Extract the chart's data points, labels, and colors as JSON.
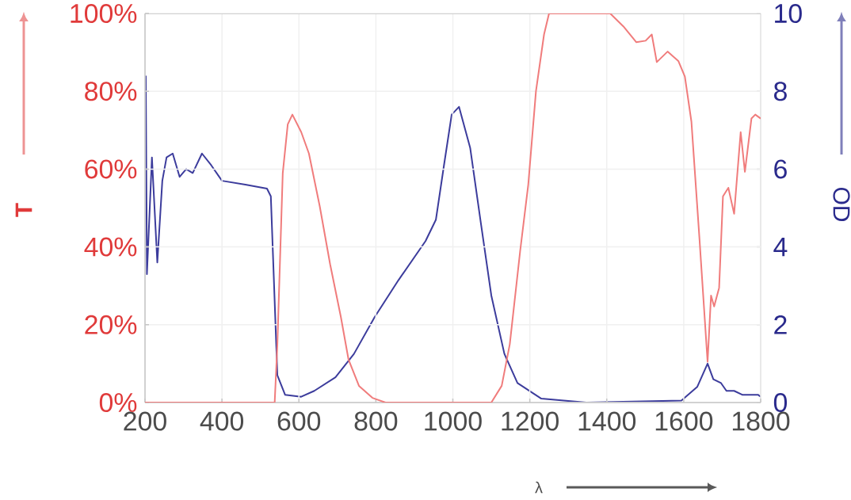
{
  "chart_data": {
    "type": "line",
    "xlabel": "λ",
    "ylabel": "T",
    "y2label": "OD",
    "xlim": [
      200,
      1800
    ],
    "xticks": [
      200,
      400,
      600,
      800,
      1000,
      1200,
      1400,
      1600,
      1800
    ],
    "ylim": [
      0,
      100
    ],
    "yticks": [
      {
        "value": 0,
        "label": "0%"
      },
      {
        "value": 20,
        "label": "20%"
      },
      {
        "value": 40,
        "label": "40%"
      },
      {
        "value": 60,
        "label": "60%"
      },
      {
        "value": 80,
        "label": "80%"
      },
      {
        "value": 100,
        "label": "100%"
      }
    ],
    "y2lim": [
      0,
      10
    ],
    "y2ticks": [
      0,
      2,
      4,
      6,
      8,
      10
    ],
    "grid": true,
    "series": [
      {
        "color": "#3c3c9c",
        "axis": "y2",
        "x": [
          202,
          205,
          218,
          232,
          245,
          256,
          272,
          290,
          307,
          324,
          348,
          372,
          400,
          461,
          517,
          527,
          544,
          564,
          606,
          640,
          695,
          743,
          797,
          859,
          929,
          956,
          977,
          997,
          1016,
          1045,
          1073,
          1100,
          1134,
          1168,
          1230,
          1347,
          1594,
          1635,
          1662,
          1677,
          1697,
          1711,
          1731,
          1752,
          1793,
          1800
        ],
        "values": [
          8.4,
          3.3,
          6.3,
          3.6,
          5.7,
          6.3,
          6.4,
          5.8,
          6.0,
          5.9,
          6.4,
          6.1,
          5.7,
          5.6,
          5.5,
          5.3,
          0.7,
          0.2,
          0.15,
          0.3,
          0.65,
          1.25,
          2.2,
          3.15,
          4.15,
          4.7,
          6.1,
          7.4,
          7.6,
          6.55,
          4.6,
          2.75,
          1.25,
          0.5,
          0.1,
          0.0,
          0.05,
          0.4,
          1.0,
          0.6,
          0.5,
          0.3,
          0.3,
          0.2,
          0.2,
          0.15
        ]
      },
      {
        "color": "#f07c7c",
        "axis": "y",
        "x": [
          200,
          537,
          544,
          558,
          571,
          583,
          606,
          626,
          654,
          681,
          709,
          729,
          756,
          791,
          825,
          1100,
          1127,
          1148,
          1175,
          1196,
          1216,
          1237,
          1250,
          1409,
          1443,
          1477,
          1501,
          1517,
          1530,
          1558,
          1586,
          1603,
          1620,
          1641,
          1662,
          1671,
          1679,
          1692,
          1702,
          1716,
          1731,
          1748,
          1759,
          1776,
          1786,
          1800
        ],
        "values": [
          0,
          0,
          15,
          59,
          71.5,
          74,
          69.5,
          64,
          50.5,
          35.6,
          22,
          11,
          4.3,
          1.2,
          0,
          0,
          4.3,
          15,
          39,
          56,
          80,
          94.6,
          100,
          100,
          96.7,
          92.6,
          93,
          94.6,
          87.5,
          90.2,
          87.8,
          83.8,
          72.2,
          42,
          10.5,
          27.5,
          24.7,
          29.5,
          53,
          55.2,
          48.5,
          69.5,
          59.3,
          73,
          74,
          73
        ]
      }
    ]
  }
}
